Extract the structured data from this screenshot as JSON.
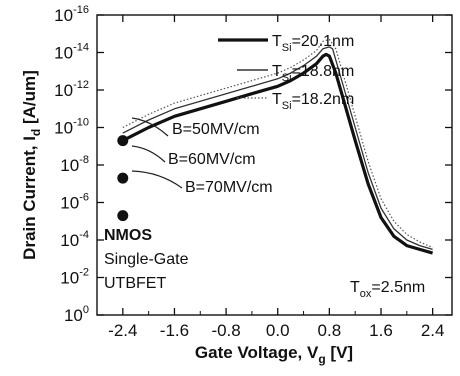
{
  "chart_data": {
    "type": "line",
    "xlabel": "Gate Voltage, V",
    "xlabel_sub": "g",
    "xlabel_unit": " [V]",
    "ylabel": "Drain Current, I",
    "ylabel_sub": "d",
    "ylabel_unit": " [A/um]",
    "x_scale": "linear",
    "y_scale": "log",
    "xlim": [
      -2.8,
      2.7
    ],
    "ylim_exp": [
      -16,
      0
    ],
    "x_ticks": [
      -2.4,
      -1.6,
      -0.8,
      0.0,
      0.8,
      1.6,
      2.4
    ],
    "x_tick_labels": [
      "-2.4",
      "-1.6",
      "-0.8",
      "0.0",
      "0.8",
      "1.6",
      "2.4"
    ],
    "y_tick_exponents": [
      0,
      -2,
      -4,
      -6,
      -8,
      -10,
      -12,
      -14,
      -16
    ],
    "y_tick_base": "10",
    "grid": false,
    "legend_position": "top-right",
    "series": [
      {
        "name": "T_Si=20.1nm",
        "legend": {
          "base": "T",
          "sub": "Si",
          "rest": "=20.1nm"
        },
        "color": "#111111",
        "style": "thick-solid",
        "x": [
          -2.4,
          -2.0,
          -1.6,
          -1.2,
          -0.8,
          -0.4,
          0.0,
          0.2,
          0.4,
          0.6,
          0.7,
          0.75,
          0.8,
          0.9,
          1.0,
          1.2,
          1.4,
          1.6,
          1.8,
          2.0,
          2.2,
          2.4
        ],
        "y_log10": [
          -9.3,
          -10.0,
          -10.6,
          -11.0,
          -11.4,
          -11.8,
          -12.2,
          -12.5,
          -12.9,
          -13.4,
          -13.8,
          -13.9,
          -13.8,
          -12.9,
          -11.7,
          -9.3,
          -7.0,
          -5.2,
          -4.2,
          -3.7,
          -3.5,
          -3.3
        ]
      },
      {
        "name": "T_Si=18.8nm",
        "legend": {
          "base": "T",
          "sub": "Si",
          "rest": "=18.8nm"
        },
        "color": "#333333",
        "style": "thin-solid",
        "x": [
          -2.4,
          -2.0,
          -1.6,
          -1.2,
          -0.8,
          -0.4,
          0.0,
          0.2,
          0.4,
          0.6,
          0.7,
          0.8,
          0.85,
          0.9,
          1.0,
          1.2,
          1.4,
          1.6,
          1.8,
          2.0,
          2.2,
          2.4
        ],
        "y_log10": [
          -9.7,
          -10.4,
          -11.0,
          -11.4,
          -11.8,
          -12.2,
          -12.6,
          -12.9,
          -13.3,
          -13.8,
          -14.2,
          -14.3,
          -14.2,
          -13.6,
          -12.4,
          -10.0,
          -7.6,
          -5.7,
          -4.6,
          -4.0,
          -3.7,
          -3.5
        ]
      },
      {
        "name": "T_Si=18.2nm",
        "legend": {
          "base": "T",
          "sub": "Si",
          "rest": "=18.2nm"
        },
        "color": "#555555",
        "style": "dotted",
        "x": [
          -2.4,
          -2.0,
          -1.6,
          -1.2,
          -0.8,
          -0.4,
          0.0,
          0.2,
          0.4,
          0.6,
          0.7,
          0.8,
          0.9,
          1.0,
          1.2,
          1.4,
          1.6,
          1.8,
          2.0,
          2.2,
          2.4
        ],
        "y_log10": [
          -10.0,
          -10.7,
          -11.3,
          -11.7,
          -12.1,
          -12.5,
          -12.9,
          -13.2,
          -13.6,
          -14.1,
          -14.6,
          -14.7,
          -14.2,
          -13.0,
          -10.6,
          -8.2,
          -6.2,
          -5.0,
          -4.3,
          -3.9,
          -3.6
        ]
      }
    ],
    "annotations": {
      "b_labels": [
        "B=50MV/cm",
        "B=60MV/cm",
        "B=70MV/cm"
      ],
      "b_markers_y_log10": [
        -5.3,
        -7.3,
        -9.3
      ],
      "b_markers_x": -2.4,
      "device_lines": [
        "NMOS",
        "Single-Gate",
        "UTBFET"
      ],
      "tox": {
        "base": "T",
        "sub": "ox",
        "rest": "=2.5nm"
      }
    }
  }
}
